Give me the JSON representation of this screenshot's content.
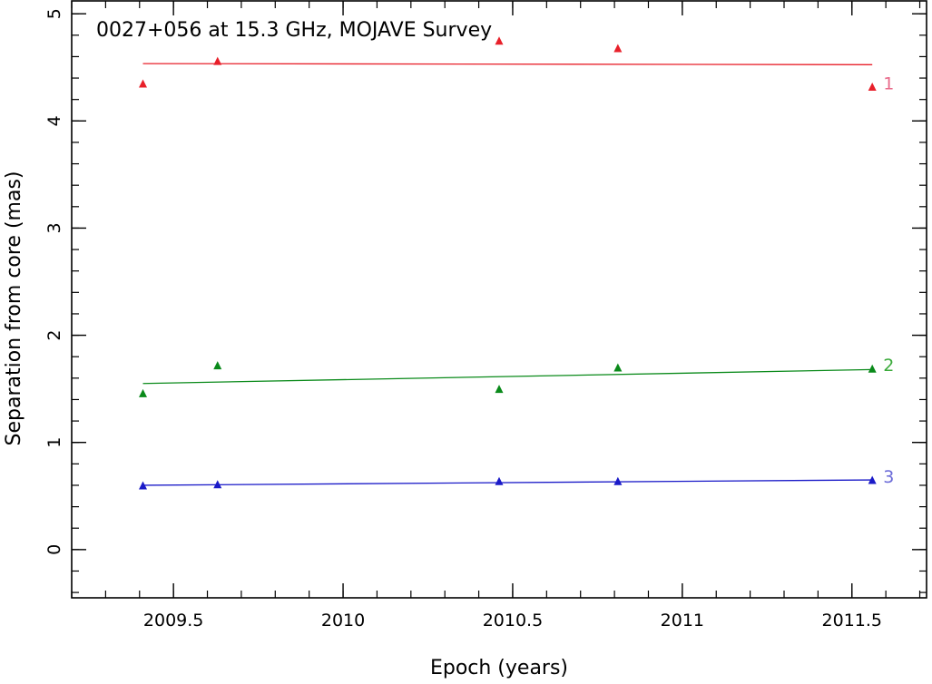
{
  "chart_data": {
    "type": "scatter",
    "title": "0027+056 at 15.3 GHz, MOJAVE Survey",
    "xlabel": "Epoch (years)",
    "ylabel": "Separation from core (mas)",
    "xlim": [
      2009.2,
      2011.72
    ],
    "ylim": [
      -0.45,
      5.12
    ],
    "xticks": [
      2009.5,
      2010,
      2010.5,
      2011,
      2011.5
    ],
    "xtick_labels": [
      "2009.5",
      "2010",
      "2010.5",
      "2011",
      "2011.5"
    ],
    "xminor_step": 0.1,
    "yticks": [
      0,
      1,
      2,
      3,
      4,
      5
    ],
    "ytick_labels": [
      "0",
      "1",
      "2",
      "3",
      "4",
      "5"
    ],
    "yminor_step": 0.2,
    "grid": false,
    "series": [
      {
        "name": "1",
        "color": "#e8202a",
        "label_color": "#e86a8a",
        "x": [
          2009.41,
          2009.63,
          2010.46,
          2010.81,
          2011.56
        ],
        "y": [
          4.35,
          4.56,
          4.75,
          4.68,
          4.32
        ],
        "fit": {
          "x": [
            2009.41,
            2011.56
          ],
          "y": [
            4.535,
            4.525
          ]
        }
      },
      {
        "name": "2",
        "color": "#0a8a1a",
        "label_color": "#3aaa3a",
        "x": [
          2009.41,
          2009.63,
          2010.46,
          2010.81,
          2011.56
        ],
        "y": [
          1.46,
          1.72,
          1.5,
          1.7,
          1.69
        ],
        "fit": {
          "x": [
            2009.41,
            2011.56
          ],
          "y": [
            1.55,
            1.68
          ]
        }
      },
      {
        "name": "3",
        "color": "#1a1ac8",
        "label_color": "#6a6ad8",
        "x": [
          2009.41,
          2009.63,
          2010.46,
          2010.81,
          2011.56
        ],
        "y": [
          0.6,
          0.61,
          0.64,
          0.64,
          0.65
        ],
        "fit": {
          "x": [
            2009.41,
            2011.56
          ],
          "y": [
            0.6,
            0.65
          ]
        }
      }
    ]
  }
}
